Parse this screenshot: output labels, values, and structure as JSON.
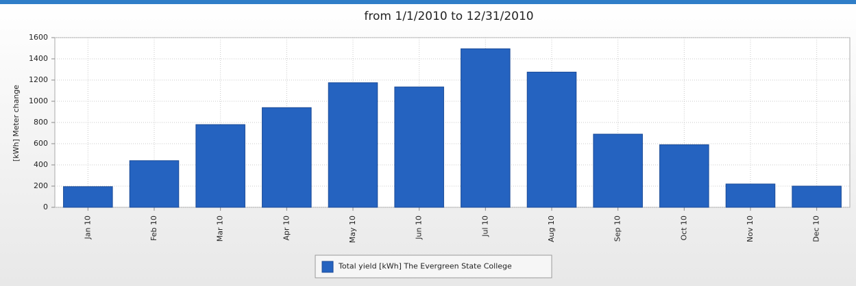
{
  "chart_data": {
    "type": "bar",
    "title": "from 1/1/2010 to 12/31/2010",
    "ylabel": "[kWh] Meter change",
    "categories": [
      "Jan 10",
      "Feb 10",
      "Mar 10",
      "Apr 10",
      "May 10",
      "Jun 10",
      "Jul 10",
      "Aug 10",
      "Sep 10",
      "Oct 10",
      "Nov 10",
      "Dec 10"
    ],
    "series": [
      {
        "name": "Total yield [kWh] The Evergreen State College",
        "color": "#2563c0",
        "values": [
          195,
          440,
          780,
          940,
          1175,
          1135,
          1495,
          1275,
          690,
          590,
          220,
          200
        ]
      }
    ],
    "ylim": [
      0,
      1600
    ],
    "yticks": [
      0,
      200,
      400,
      600,
      800,
      1000,
      1200,
      1400,
      1600
    ],
    "grid": true,
    "legend": "bottom"
  }
}
